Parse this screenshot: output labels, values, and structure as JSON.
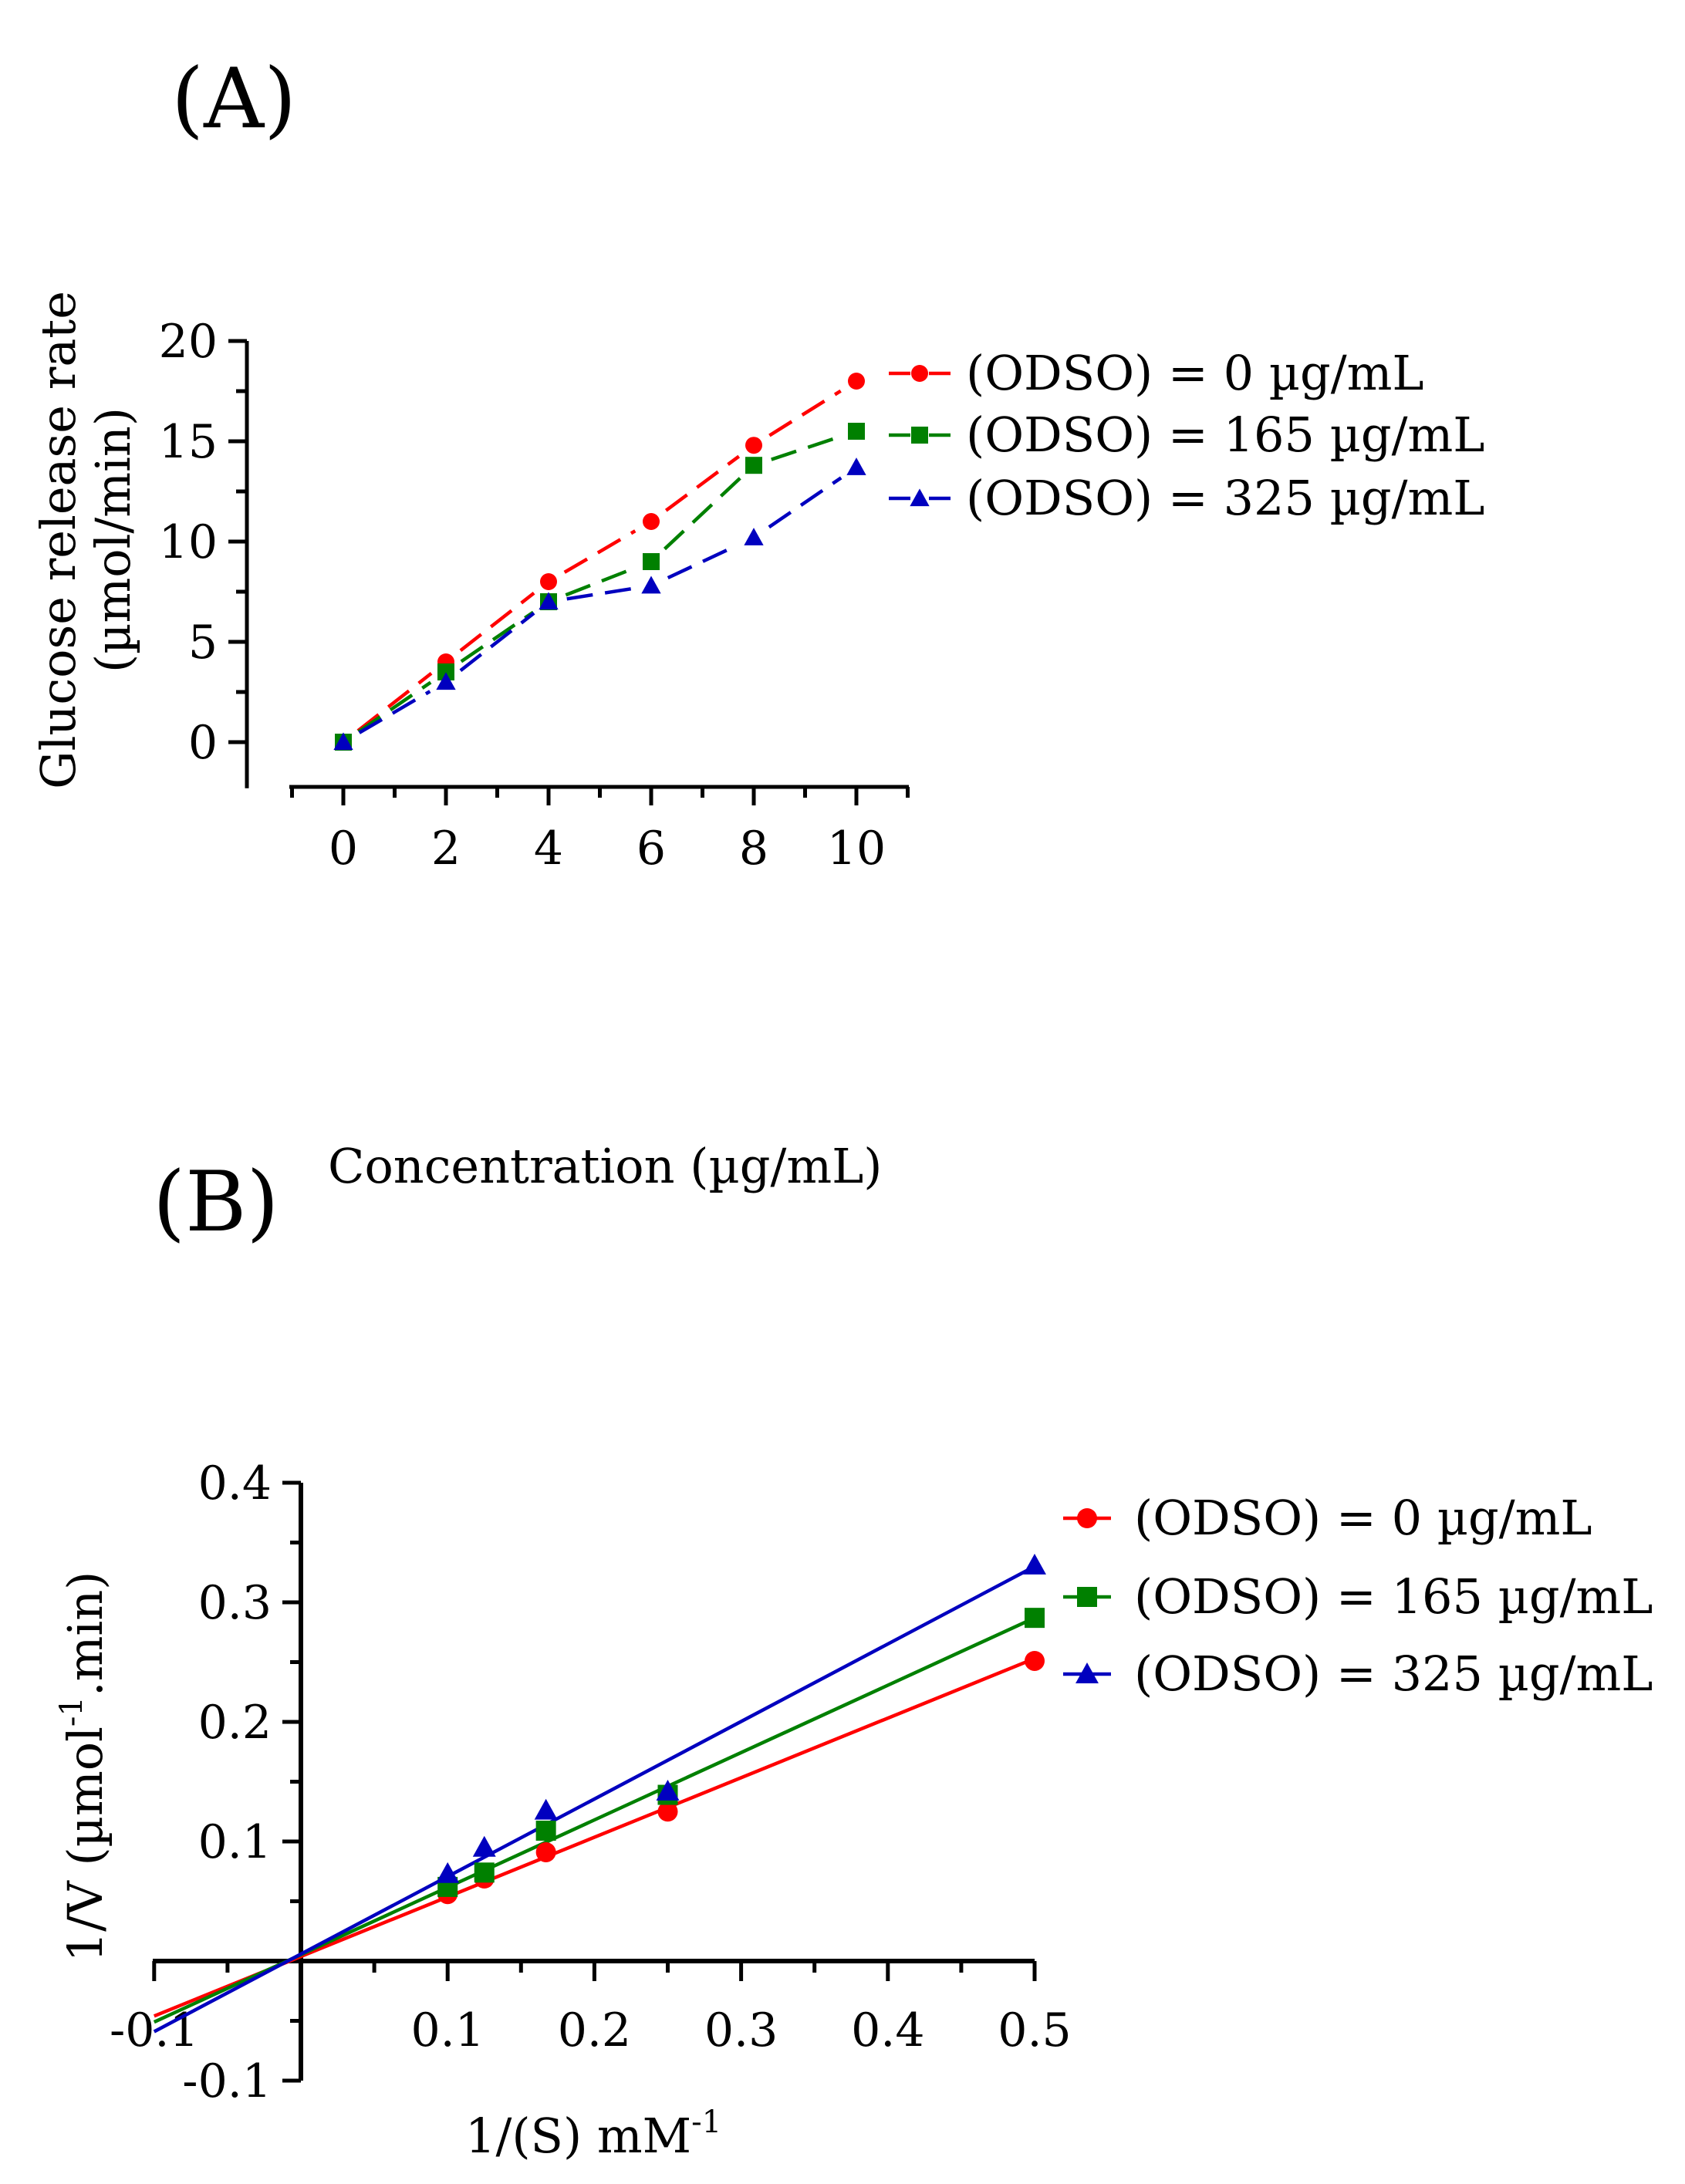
{
  "panel_labels": {
    "a": "(A)",
    "b": "(B)"
  },
  "chart_data": [
    {
      "type": "line",
      "panel": "(A)",
      "xlabel": "Concentration (µg/mL)",
      "ylabel_line1": "Glucose release rate",
      "ylabel_line2": "(µmol/min)",
      "xlim": [
        -1,
        11
      ],
      "ylim": [
        -2.3,
        20
      ],
      "x_ticks": [
        0,
        2,
        4,
        6,
        8,
        10
      ],
      "x_tick_labels": [
        "0",
        "2",
        "4",
        "6",
        "8",
        "10"
      ],
      "y_ticks": [
        0,
        5,
        10,
        15,
        20
      ],
      "y_tick_labels": [
        "0",
        "5",
        "10",
        "15",
        "20"
      ],
      "x": [
        0,
        2,
        4,
        6,
        8,
        10
      ],
      "series": [
        {
          "name": "(ODSO) = 0 µg/mL",
          "color": "#ff0000",
          "marker": "circle",
          "values": [
            0,
            4.0,
            8.0,
            11.0,
            14.8,
            18.0
          ]
        },
        {
          "name": "(ODSO) = 165 µg/mL",
          "color": "#008000",
          "marker": "square",
          "values": [
            0,
            3.5,
            7.0,
            9.0,
            13.8,
            15.5
          ]
        },
        {
          "name": "(ODSO) = 325 µg/mL",
          "color": "#0000bf",
          "marker": "triangle",
          "values": [
            0,
            3.0,
            7.0,
            7.8,
            10.2,
            13.7
          ]
        }
      ]
    },
    {
      "type": "line",
      "panel": "(B)",
      "xlabel": "1/(S) mM",
      "xlabel_sup": "-1",
      "ylabel": "1/V (µmol",
      "ylabel_sup": "-1",
      "ylabel_tail": ".min)",
      "xlim": [
        -0.1,
        0.5
      ],
      "ylim": [
        -0.1,
        0.4
      ],
      "x_ticks": [
        -0.1,
        0.1,
        0.2,
        0.3,
        0.4,
        0.5
      ],
      "x_tick_labels": [
        "-0.1",
        "0.1",
        "0.2",
        "0.3",
        "0.4",
        "0.5"
      ],
      "y_ticks": [
        -0.1,
        0.1,
        0.2,
        0.3,
        0.4
      ],
      "y_tick_labels": [
        "-0.1",
        "0.1",
        "0.2",
        "0.3",
        "0.4"
      ],
      "x": [
        0.1,
        0.125,
        0.167,
        0.25,
        0.5
      ],
      "series": [
        {
          "name": "(ODSO) = 0 µg/mL",
          "color": "#ff0000",
          "marker": "circle",
          "values": [
            0.056,
            0.069,
            0.091,
            0.125,
            0.251
          ],
          "fit": {
            "x": [
              -0.1,
              0.5
            ],
            "y": [
              -0.046,
              0.253
            ]
          }
        },
        {
          "name": "(ODSO) = 165 µg/mL",
          "color": "#008000",
          "marker": "square",
          "values": [
            0.062,
            0.074,
            0.109,
            0.139,
            0.287
          ],
          "fit": {
            "x": [
              -0.1,
              0.5
            ],
            "y": [
              -0.051,
              0.287
            ]
          }
        },
        {
          "name": "(ODSO) = 325 µg/mL",
          "color": "#0000bf",
          "marker": "triangle",
          "values": [
            0.073,
            0.095,
            0.126,
            0.142,
            0.331
          ],
          "fit": {
            "x": [
              -0.1,
              0.5
            ],
            "y": [
              -0.059,
              0.33
            ]
          }
        }
      ]
    }
  ]
}
